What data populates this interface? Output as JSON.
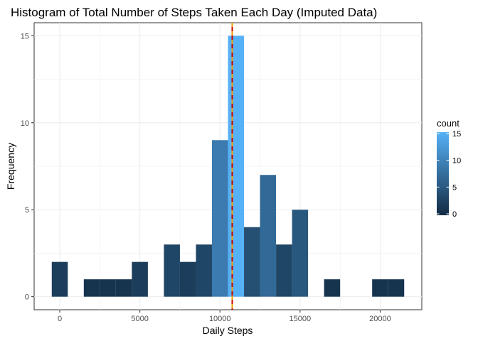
{
  "chart_data": {
    "type": "bar",
    "title": "Histogram of Total Number of Steps Taken Each Day (Imputed Data)",
    "xlabel": "Daily Steps",
    "ylabel": "Frequency",
    "xlim": [
      -1600,
      22600
    ],
    "ylim": [
      -0.75,
      15.75
    ],
    "xticks": [
      0,
      5000,
      10000,
      15000,
      20000
    ],
    "xtick_labels": [
      "0",
      "5000",
      "10000",
      "15000",
      "20000"
    ],
    "yticks": [
      0,
      5,
      10,
      15
    ],
    "ytick_labels": [
      "0",
      "5",
      "10",
      "15"
    ],
    "binwidth": 1000,
    "bins": [
      {
        "x": 0,
        "count": 2
      },
      {
        "x": 2000,
        "count": 1
      },
      {
        "x": 3000,
        "count": 1
      },
      {
        "x": 4000,
        "count": 1
      },
      {
        "x": 5000,
        "count": 2
      },
      {
        "x": 7000,
        "count": 3
      },
      {
        "x": 8000,
        "count": 2
      },
      {
        "x": 9000,
        "count": 3
      },
      {
        "x": 10000,
        "count": 9
      },
      {
        "x": 11000,
        "count": 15
      },
      {
        "x": 12000,
        "count": 4
      },
      {
        "x": 13000,
        "count": 7
      },
      {
        "x": 14000,
        "count": 3
      },
      {
        "x": 15000,
        "count": 5
      },
      {
        "x": 17000,
        "count": 1
      },
      {
        "x": 20000,
        "count": 1
      },
      {
        "x": 21000,
        "count": 1
      }
    ],
    "mean_line": {
      "x": 10766,
      "color": "#cc0000"
    },
    "median_line": {
      "x": 10766,
      "color": "#e8a000"
    },
    "grid": true,
    "legend": {
      "title": "count",
      "placement": "right",
      "ticks": [
        0,
        5,
        10,
        15
      ],
      "tick_labels": [
        "0",
        "5",
        "10",
        "15"
      ],
      "low_color": "#132b43",
      "high_color": "#56b1f7"
    }
  }
}
